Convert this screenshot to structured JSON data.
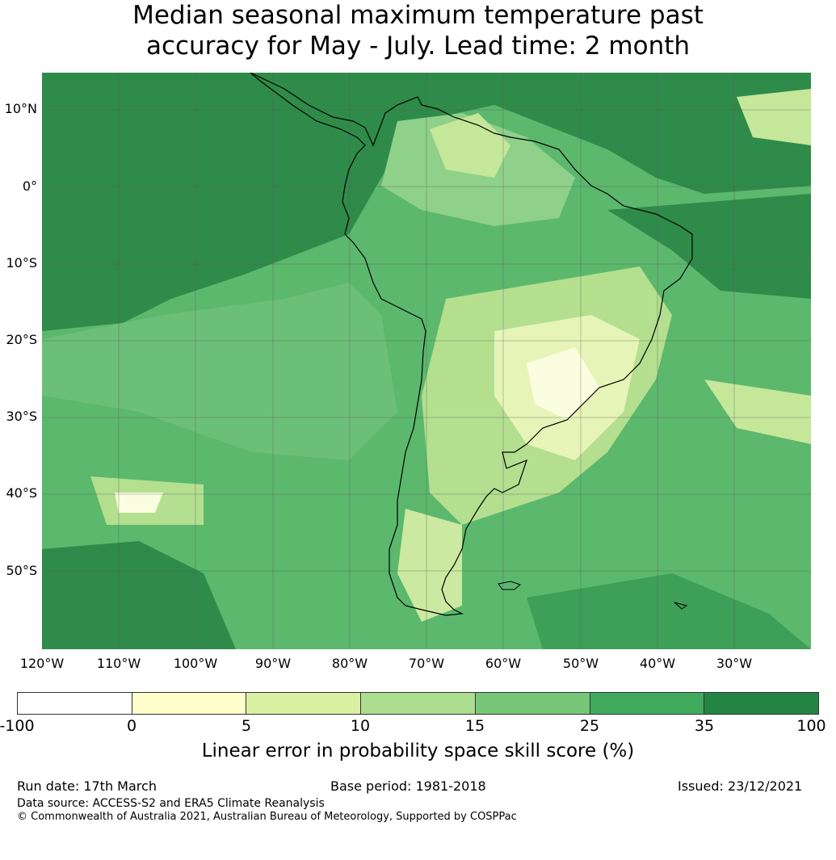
{
  "title_line1": "Median seasonal maximum temperature past",
  "title_line2": "accuracy for May - July. Lead time: 2 month",
  "lat_labels": [
    "10°N",
    "0°",
    "10°S",
    "20°S",
    "30°S",
    "40°S",
    "50°S"
  ],
  "lon_labels": [
    "120°W",
    "110°W",
    "100°W",
    "90°W",
    "80°W",
    "70°W",
    "60°W",
    "50°W",
    "40°W",
    "30°W"
  ],
  "legend": {
    "ticks": [
      "-100",
      "0",
      "5",
      "10",
      "15",
      "25",
      "35",
      "100"
    ],
    "colors": [
      "#ffffff",
      "#ffffcc",
      "#d9f0a3",
      "#addd8e",
      "#78c679",
      "#41ab5d",
      "#238443"
    ],
    "label": "Linear error in probability space skill score (%)"
  },
  "footer": {
    "run_date": "Run date: 17th March",
    "base_period": "Base period: 1981-2018",
    "issued": "Issued: 23/12/2021",
    "data_source": "Data source: ACCESS-S2 and ERA5 Climate Reanalysis",
    "copyright": "© Commonwealth of Australia 2021, Australian Bureau of Meteorology, Supported by COSPPac"
  }
}
